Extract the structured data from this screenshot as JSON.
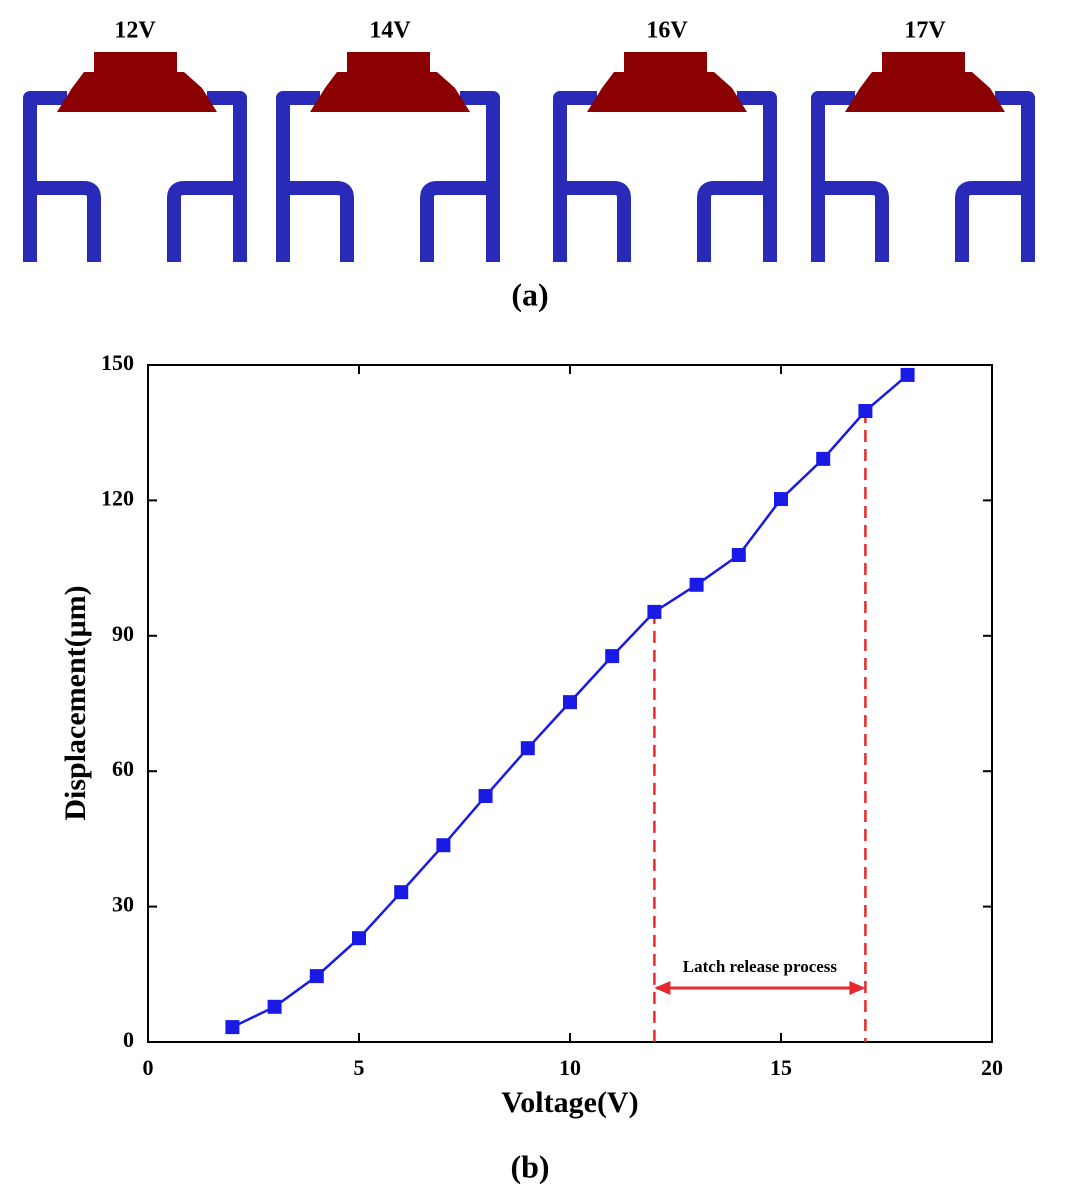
{
  "figure_a": {
    "labels": [
      "12V",
      "14V",
      "16V",
      "17V"
    ],
    "caption": "(a)"
  },
  "chart_data": {
    "type": "line",
    "caption": "(b)",
    "x_label": "Voltage(V)",
    "y_label": "Displacement(μm)",
    "x": [
      2,
      3,
      4,
      5,
      6,
      7,
      8,
      9,
      10,
      11,
      12,
      13,
      14,
      15,
      16,
      17,
      18
    ],
    "series": [
      {
        "color": "#1a1ae6",
        "values": [
          3.3,
          7.8,
          14.6,
          23.0,
          33.2,
          43.6,
          54.5,
          65.1,
          75.3,
          85.5,
          95.3,
          101.3,
          107.9,
          120.3,
          129.2,
          139.8,
          147.8
        ]
      }
    ],
    "xlim": [
      0,
      20
    ],
    "ylim": [
      0,
      150
    ],
    "xticks": [
      0,
      5,
      10,
      15,
      20
    ],
    "yticks": [
      0,
      30,
      60,
      90,
      120,
      150
    ],
    "annotation": {
      "text": "Latch release process",
      "range": [
        12,
        17
      ],
      "color": "#e8282e"
    }
  }
}
